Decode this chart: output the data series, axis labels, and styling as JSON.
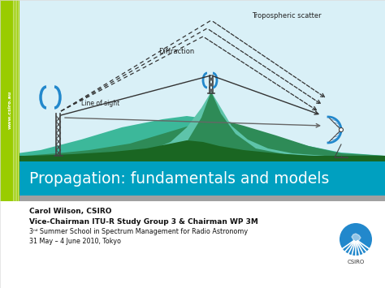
{
  "title": "Propagation: fundamentals and models",
  "author_line1": "Carol Wilson, CSIRO",
  "author_line2": "Vice-Chairman ITU-R Study Group 3 & Chairman WP 3M",
  "author_line3": "3ʳᵈ Summer School in Spectrum Management for Radio Astronomy",
  "author_line4": "31 May – 4 June 2010, Tokyo",
  "bg_color": "#ffffff",
  "sky_color": "#d9f0f7",
  "title_bar_color": "#00a0c0",
  "gray_bar_color": "#a0a0a0",
  "sidebar_color": "#99cc00",
  "sidebar_text": "www.csiro.au",
  "label_troposcatter": "Tropospheric scatter",
  "label_diffraction": "Diffraction",
  "label_los": "Line of sight",
  "hill_dark": "#1a6622",
  "hill_mid": "#2e8b57",
  "hill_teal": "#3cb89a",
  "hill_light_teal": "#5ec4aa",
  "sky_color2": "#b8e8f0",
  "title_text_color": "#ffffff",
  "csiro_blue": "#2288cc",
  "antenna_color": "#444444",
  "line_color": "#333333",
  "label_color": "#222222",
  "white": "#ffffff"
}
